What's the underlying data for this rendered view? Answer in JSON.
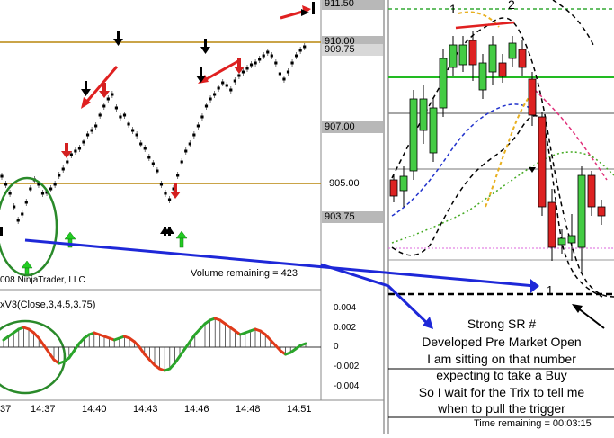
{
  "left_chart": {
    "copyright": "008 NinjaTrader, LLC",
    "volume_remaining": "Volume remaining = 423",
    "price_tags": [
      "911.50",
      "910.00",
      "909.75",
      "907.00",
      "905.00",
      "903.75"
    ],
    "indicator_label": "xV3(Close,3,4.5,3.75)",
    "indicator_ticks": [
      "0.004",
      "0.002",
      "0",
      "-0.002",
      "-0.004"
    ],
    "time_ticks": [
      "37",
      "14:37",
      "14:40",
      "14:43",
      "14:46",
      "14:48",
      "14:51"
    ]
  },
  "right_chart": {
    "swing_labels": [
      "1",
      "2",
      "1"
    ],
    "notes": [
      "Strong SR #",
      "Developed Pre Market Open",
      "I am sitting on that number",
      "expecting to take a Buy",
      "So I wait for the Trix to tell me",
      "when to pull the trigger"
    ],
    "time_remaining": "Time remaining = 00:03:15"
  },
  "colors": {
    "gold_line": "#b8860b",
    "annotation_blue": "#1e28d8",
    "annotation_red": "#e02020",
    "ellipse_green": "#2a8a2a",
    "candle_up": "#44cc44",
    "candle_down": "#dd2222"
  }
}
